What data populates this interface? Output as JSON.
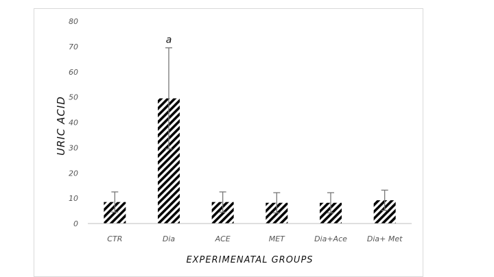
{
  "chart_data": {
    "type": "bar",
    "title": "",
    "xlabel": "EXPERIMENATAL GROUPS",
    "ylabel": "URIC ACID",
    "categories": [
      "CTR",
      "Dia",
      "ACE",
      "MET",
      "Dia+Ace",
      "Dia+ Met"
    ],
    "values": [
      8.5,
      49.5,
      8.5,
      8.2,
      8.2,
      9.2
    ],
    "errors": [
      4,
      20,
      4,
      4,
      4,
      4
    ],
    "annotations": [
      "",
      "a",
      "",
      "",
      "",
      ""
    ],
    "ylim": [
      0,
      80
    ],
    "yticks": [
      0,
      10,
      20,
      30,
      40,
      50,
      60,
      70,
      80
    ],
    "grid": false,
    "legend": "none",
    "bar_pattern": "diagonal-hatch",
    "colors": {
      "bar_fill": "#000000",
      "error_bar": "#777777",
      "axis": "#bfbfbf"
    }
  }
}
